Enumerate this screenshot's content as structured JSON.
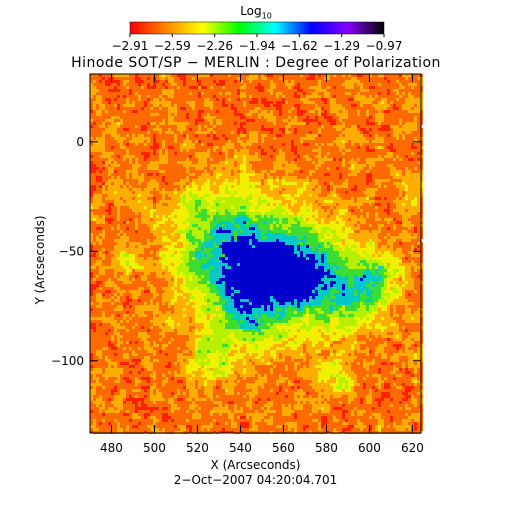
{
  "colorbar": {
    "title": "Log",
    "title_sub": "10",
    "tick_labels": [
      "−2.91",
      "−2.59",
      "−2.26",
      "−1.94",
      "−1.62",
      "−1.29",
      "−0.97"
    ],
    "range": [
      -2.91,
      -0.97
    ],
    "palette": [
      "#ff0000",
      "#ff8800",
      "#ffff00",
      "#00ff00",
      "#00ffff",
      "#0000ff",
      "#8800ff",
      "#000000"
    ]
  },
  "chart_data": {
    "type": "heatmap",
    "title": "Hinode SOT/SP − MERLIN : Degree of Polarization",
    "xlabel": "X (Arcseconds)",
    "ylabel": "Y (Arcseconds)",
    "xlim": [
      470,
      624
    ],
    "ylim": [
      -133,
      31
    ],
    "x_ticks": [
      480,
      500,
      520,
      540,
      560,
      580,
      600,
      620
    ],
    "y_ticks": [
      0,
      -50,
      -100
    ],
    "value_scale": "log10",
    "value_range": [
      -2.91,
      -0.97
    ],
    "timestamp": "2−Oct−2007 04:20:04.701"
  }
}
